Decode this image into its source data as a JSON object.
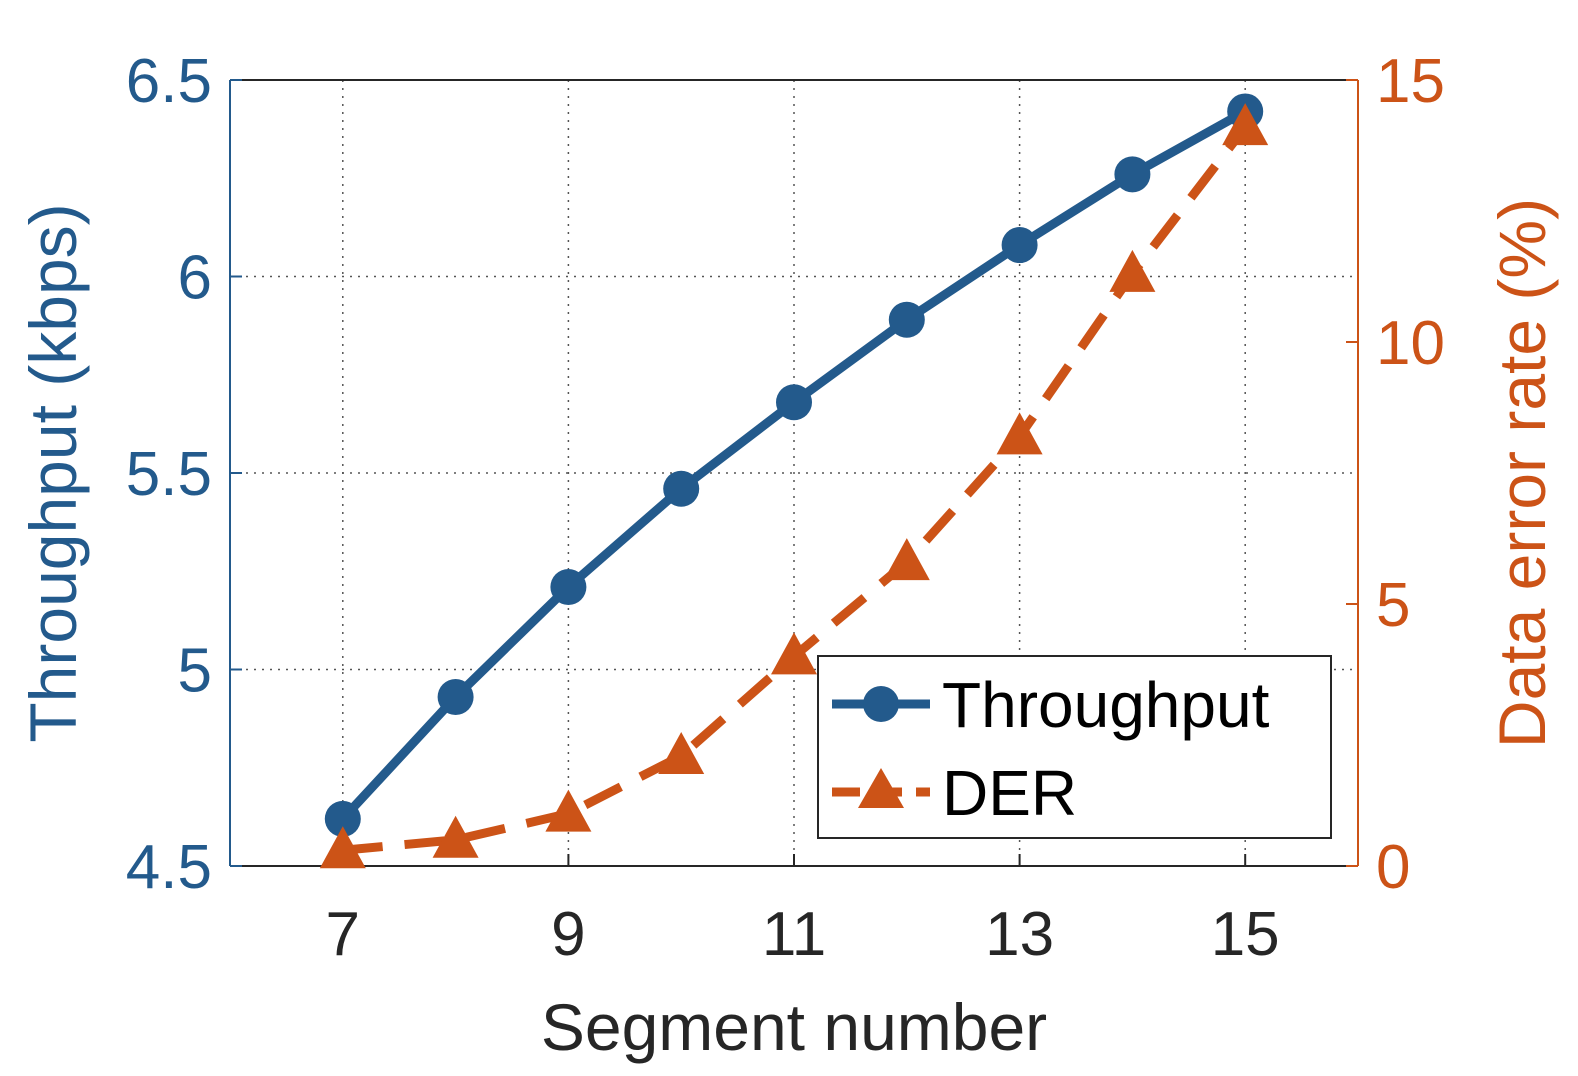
{
  "chart_data": {
    "type": "line",
    "x": [
      7,
      8,
      9,
      10,
      11,
      12,
      13,
      14,
      15
    ],
    "xlabel": "Segment number",
    "xticks": [
      "7",
      "9",
      "11",
      "13",
      "15"
    ],
    "xlim": [
      6,
      16
    ],
    "ylabel_left": "Throughput (kbps)",
    "ylim_left": [
      4.5,
      6.5
    ],
    "yticks_left": [
      "4.5",
      "5",
      "5.5",
      "6",
      "6.5"
    ],
    "ylabel_right": "Data error rate (%)",
    "ylim_right": [
      0,
      15
    ],
    "yticks_right": [
      "0",
      "5",
      "10",
      "15"
    ],
    "grid": true,
    "legend_position": "bottom-right",
    "series": [
      {
        "name": "Throughput",
        "axis": "left",
        "style": "solid",
        "marker": "circle",
        "color": "#235a8c",
        "values": [
          4.62,
          4.93,
          5.21,
          5.46,
          5.68,
          5.89,
          6.08,
          6.26,
          6.42
        ]
      },
      {
        "name": "DER",
        "axis": "right",
        "style": "dashed",
        "marker": "triangle",
        "color": "#cc5317",
        "values": [
          0.3,
          0.5,
          1.0,
          2.1,
          4.0,
          5.8,
          8.2,
          11.3,
          14.1
        ]
      }
    ]
  },
  "colors": {
    "left_axis": "#235a8c",
    "right_axis": "#cc5317",
    "text": "#262626",
    "grid": "#555555"
  }
}
